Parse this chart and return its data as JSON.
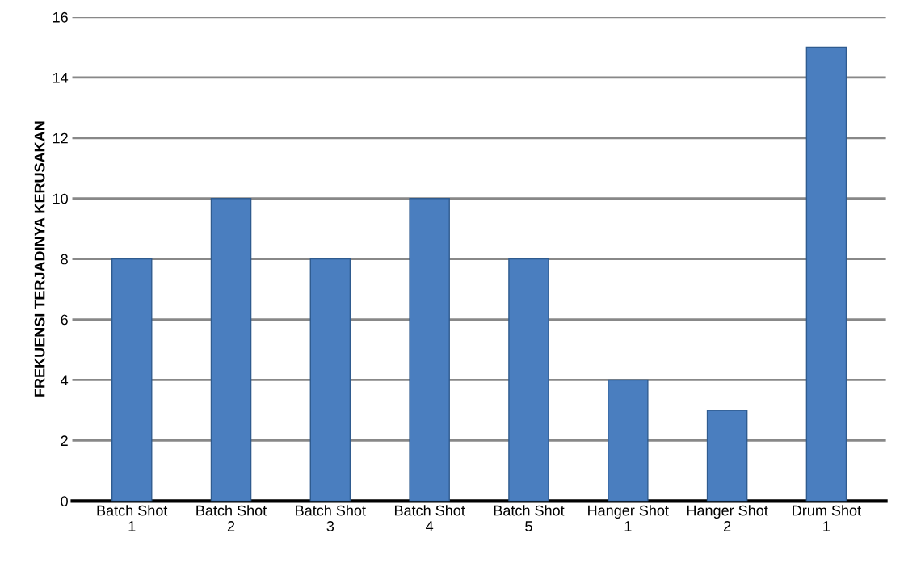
{
  "chart_data": {
    "type": "bar",
    "ylabel": "FREKUENSI TERJADINYA KERUSAKAN",
    "categories": [
      "Batch Shot 1",
      "Batch Shot 2",
      "Batch Shot 3",
      "Batch Shot 4",
      "Batch Shot 5",
      "Hanger Shot 1",
      "Hanger Shot 2",
      "Drum Shot 1"
    ],
    "values": [
      8,
      10,
      8,
      10,
      8,
      4,
      3,
      15
    ],
    "color": "#4a7ebf",
    "ylim": [
      0,
      16
    ],
    "yticks": [
      0,
      2,
      4,
      6,
      8,
      10,
      12,
      14,
      16
    ],
    "grid": "y"
  }
}
